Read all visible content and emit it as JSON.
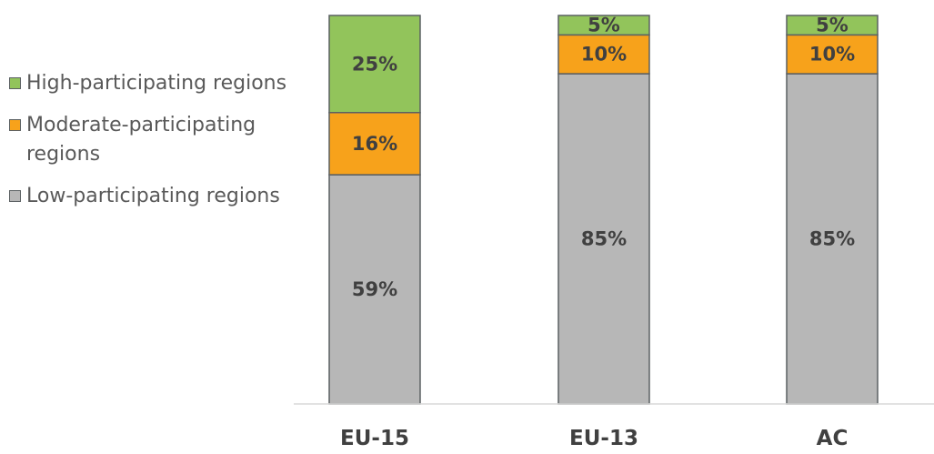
{
  "chart_data": {
    "type": "bar",
    "stacked": true,
    "categories": [
      "EU-15",
      "EU-13",
      "AC"
    ],
    "series": [
      {
        "name": "Low-participating regions",
        "values": [
          59,
          85,
          85
        ],
        "labels": [
          "59%",
          "85%",
          "85%"
        ],
        "color": "#b7b7b7"
      },
      {
        "name": "Moderate-participating regions",
        "values": [
          16,
          10,
          10
        ],
        "labels": [
          "16%",
          "10%",
          "10%"
        ],
        "color": "#f7a21b"
      },
      {
        "name": "High-participating regions",
        "values": [
          25,
          5,
          5
        ],
        "labels": [
          "25%",
          "5%",
          "5%"
        ],
        "color": "#92c45b"
      }
    ],
    "ylim": [
      0,
      100
    ],
    "title": "",
    "xlabel": "",
    "ylabel": "",
    "grid": false,
    "legend_position": "left"
  },
  "legend": {
    "items": [
      {
        "label": "High-participating regions",
        "color": "#92c45b"
      },
      {
        "label": "Moderate-participating regions",
        "color": "#f7a21b"
      },
      {
        "label": "Low-participating regions",
        "color": "#b7b7b7"
      }
    ]
  }
}
